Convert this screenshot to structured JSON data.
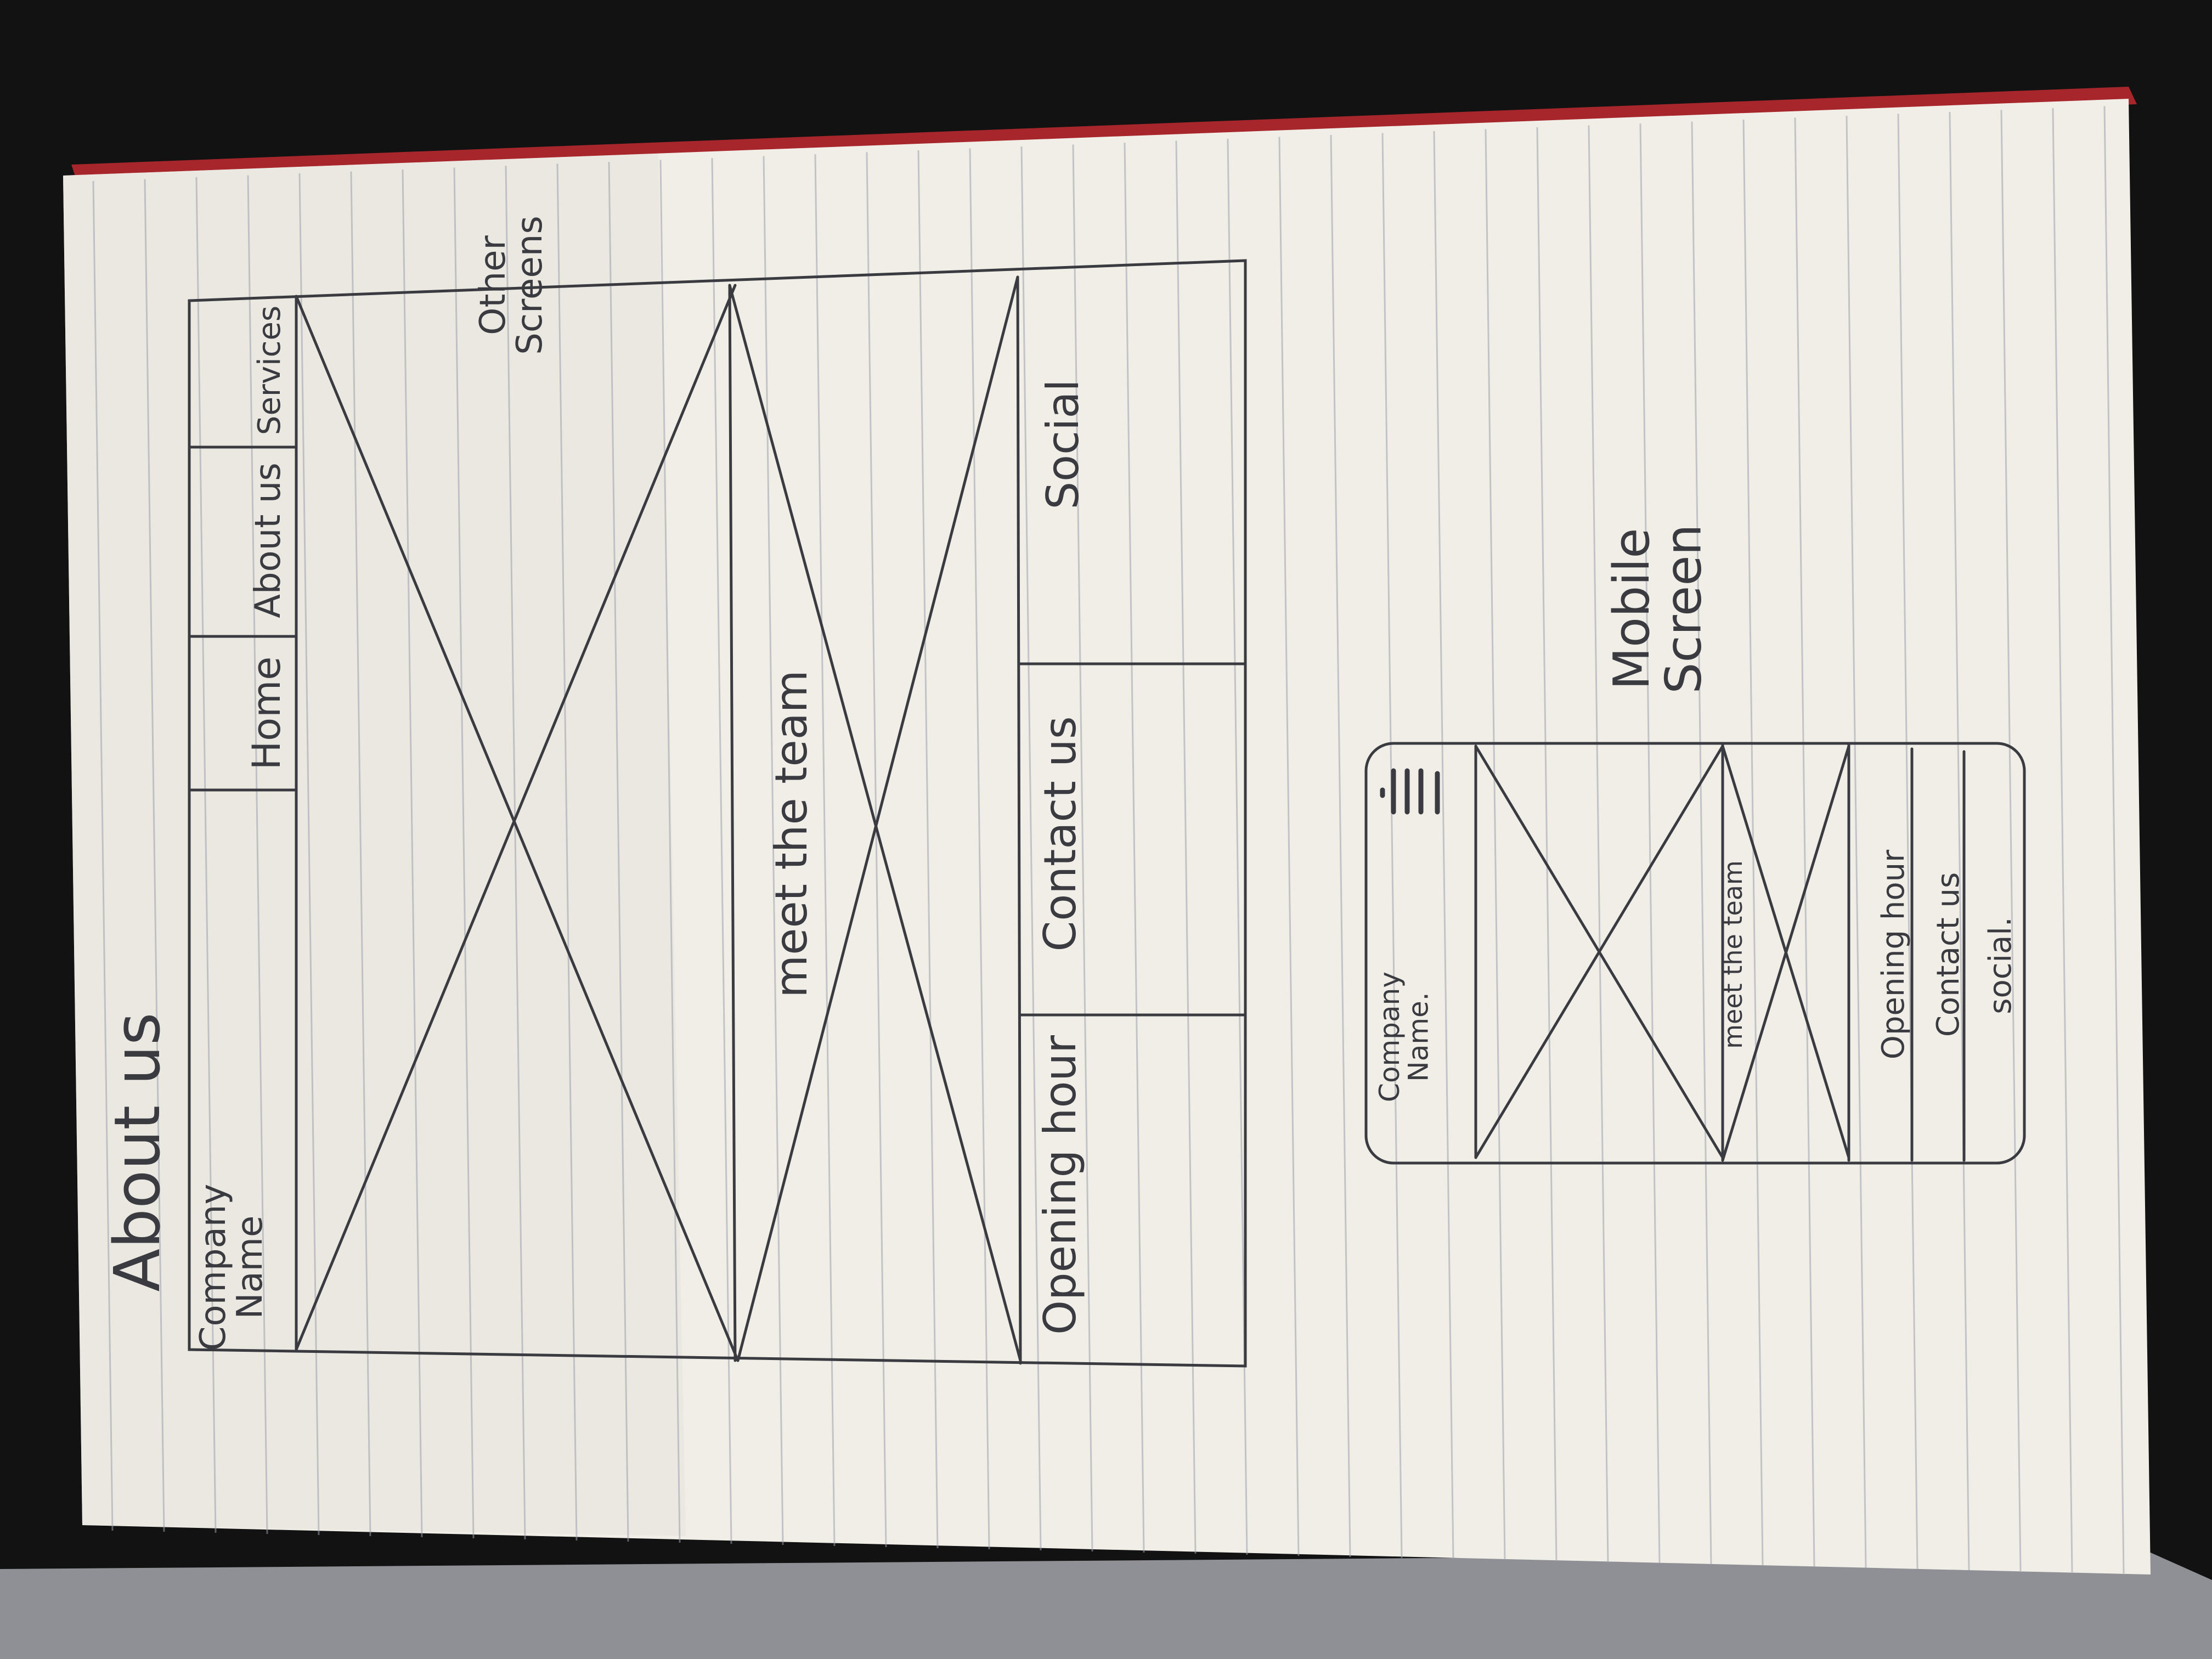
{
  "photo": {
    "subject": "hand-drawn website wireframe sketch in a lined notebook",
    "colors": {
      "background": "#121212",
      "paper": "#f1eee8",
      "paper_shadow": "#d9d4cc",
      "rule_line": "#9aa1ab",
      "ink": "#3a3b40",
      "binding_red": "#a7262c"
    }
  },
  "sketch": {
    "title": "About us",
    "desktop": {
      "company_label": "Company\nName",
      "nav": [
        "Home",
        "About us",
        "Services"
      ],
      "section_label": "meet the team",
      "footer": [
        "Opening hour",
        "Contact us",
        "Social"
      ]
    },
    "other_screens_note": "Other\nScreens",
    "mobile": {
      "caption": "Mobile\nScreen",
      "company_label": "Company\nName.",
      "menu_icon": "hamburger-menu",
      "section_label": "meet the team",
      "footer_lines": [
        "Opening hour",
        "Contact us",
        "social."
      ]
    }
  }
}
